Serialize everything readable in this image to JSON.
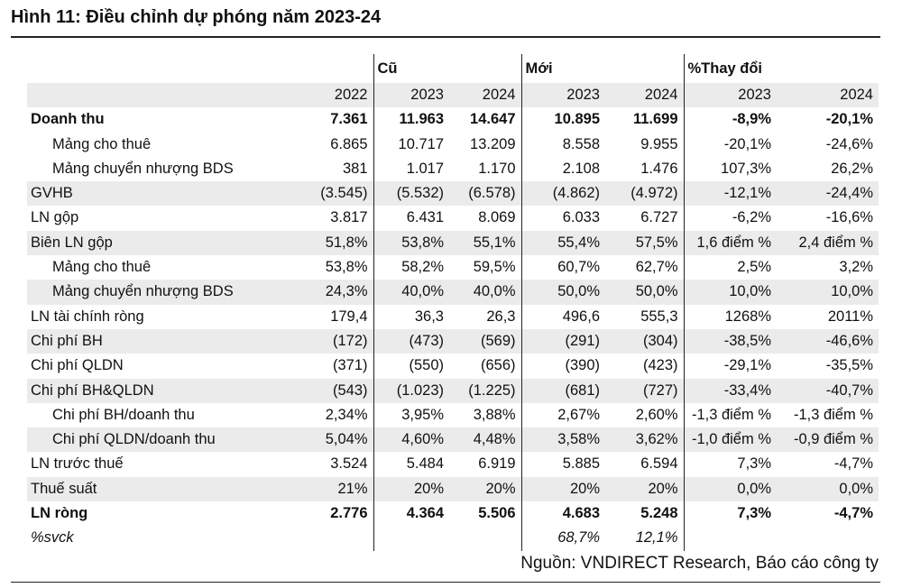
{
  "title": "Hình 11: Điều chỉnh dự phóng năm 2023-24",
  "groups": {
    "old": "Cũ",
    "new": "Mới",
    "change": "%Thay đổi"
  },
  "years": [
    "2022",
    "2023",
    "2024",
    "2023",
    "2024",
    "2023",
    "2024"
  ],
  "rows": [
    {
      "label": "Doanh thu",
      "bold": true,
      "indent": false,
      "shade": false,
      "v": [
        "7.361",
        "11.963",
        "14.647",
        "10.895",
        "11.699",
        "-8,9%",
        "-20,1%"
      ]
    },
    {
      "label": "Mảng cho thuê",
      "bold": false,
      "indent": true,
      "shade": false,
      "v": [
        "6.865",
        "10.717",
        "13.209",
        "8.558",
        "9.955",
        "-20,1%",
        "-24,6%"
      ]
    },
    {
      "label": "Mảng chuyển nhượng BDS",
      "bold": false,
      "indent": true,
      "shade": false,
      "v": [
        "381",
        "1.017",
        "1.170",
        "2.108",
        "1.476",
        "107,3%",
        "26,2%"
      ]
    },
    {
      "label": "GVHB",
      "bold": false,
      "indent": false,
      "shade": true,
      "v": [
        "(3.545)",
        "(5.532)",
        "(6.578)",
        "(4.862)",
        "(4.972)",
        "-12,1%",
        "-24,4%"
      ]
    },
    {
      "label": "LN gộp",
      "bold": false,
      "indent": false,
      "shade": false,
      "v": [
        "3.817",
        "6.431",
        "8.069",
        "6.033",
        "6.727",
        "-6,2%",
        "-16,6%"
      ]
    },
    {
      "label": "Biên LN gộp",
      "bold": false,
      "indent": false,
      "shade": true,
      "v": [
        "51,8%",
        "53,8%",
        "55,1%",
        "55,4%",
        "57,5%",
        "1,6 điểm %",
        "2,4 điểm %"
      ]
    },
    {
      "label": "Mảng cho thuê",
      "bold": false,
      "indent": true,
      "shade": false,
      "v": [
        "53,8%",
        "58,2%",
        "59,5%",
        "60,7%",
        "62,7%",
        "2,5%",
        "3,2%"
      ]
    },
    {
      "label": "Mảng chuyển nhượng BDS",
      "bold": false,
      "indent": true,
      "shade": true,
      "v": [
        "24,3%",
        "40,0%",
        "40,0%",
        "50,0%",
        "50,0%",
        "10,0%",
        "10,0%"
      ]
    },
    {
      "label": "LN tài chính ròng",
      "bold": false,
      "indent": false,
      "shade": false,
      "v": [
        "179,4",
        "36,3",
        "26,3",
        "496,6",
        "555,3",
        "1268%",
        "2011%"
      ]
    },
    {
      "label": "Chi phí BH",
      "bold": false,
      "indent": false,
      "shade": true,
      "v": [
        "(172)",
        "(473)",
        "(569)",
        "(291)",
        "(304)",
        "-38,5%",
        "-46,6%"
      ]
    },
    {
      "label": "Chi phí QLDN",
      "bold": false,
      "indent": false,
      "shade": false,
      "v": [
        "(371)",
        "(550)",
        "(656)",
        "(390)",
        "(423)",
        "-29,1%",
        "-35,5%"
      ]
    },
    {
      "label": "Chi phí BH&QLDN",
      "bold": false,
      "indent": false,
      "shade": true,
      "v": [
        "(543)",
        "(1.023)",
        "(1.225)",
        "(681)",
        "(727)",
        "-33,4%",
        "-40,7%"
      ]
    },
    {
      "label": "Chi phí BH/doanh thu",
      "bold": false,
      "indent": true,
      "shade": false,
      "v": [
        "2,34%",
        "3,95%",
        "3,88%",
        "2,67%",
        "2,60%",
        "-1,3 điểm %",
        "-1,3 điểm %"
      ]
    },
    {
      "label": "Chi phí QLDN/doanh thu",
      "bold": false,
      "indent": true,
      "shade": true,
      "v": [
        "5,04%",
        "4,60%",
        "4,48%",
        "3,58%",
        "3,62%",
        "-1,0 điểm %",
        "-0,9 điểm %"
      ]
    },
    {
      "label": "LN trước thuế",
      "bold": false,
      "indent": false,
      "shade": false,
      "v": [
        "3.524",
        "5.484",
        "6.919",
        "5.885",
        "6.594",
        "7,3%",
        "-4,7%"
      ]
    },
    {
      "label": "Thuế suất",
      "bold": false,
      "indent": false,
      "shade": true,
      "v": [
        "21%",
        "20%",
        "20%",
        "20%",
        "20%",
        "0,0%",
        "0,0%"
      ]
    },
    {
      "label": "LN ròng",
      "bold": true,
      "indent": false,
      "shade": false,
      "v": [
        "2.776",
        "4.364",
        "5.506",
        "4.683",
        "5.248",
        "7,3%",
        "-4,7%"
      ]
    },
    {
      "label": "%svck",
      "bold": false,
      "indent": false,
      "shade": false,
      "italic": true,
      "v": [
        "",
        "",
        "",
        "68,7%",
        "12,1%",
        "",
        ""
      ]
    }
  ],
  "source": "Nguồn: VNDIRECT Research, Báo cáo công ty"
}
